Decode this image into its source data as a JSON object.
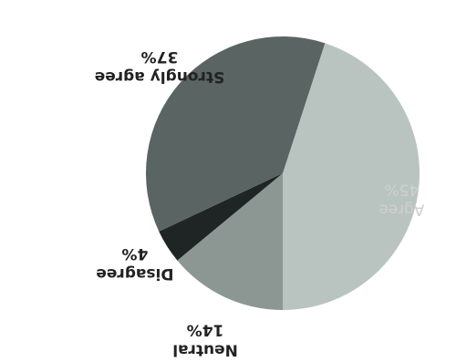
{
  "chart_data": {
    "type": "pie",
    "slices": [
      {
        "label": "Agree",
        "value": 45,
        "value_label": "45%",
        "color": "#b9c4c1"
      },
      {
        "label": "Neutral",
        "value": 14,
        "value_label": "14%",
        "color": "#8c9794"
      },
      {
        "label": "Disagree",
        "value": 4,
        "value_label": "4%",
        "color": "#1f2524"
      },
      {
        "label": "Strongly agree",
        "value": 37,
        "value_label": "37%",
        "color": "#5a6462"
      }
    ],
    "legend": "none",
    "orientation": "rotated-180"
  }
}
